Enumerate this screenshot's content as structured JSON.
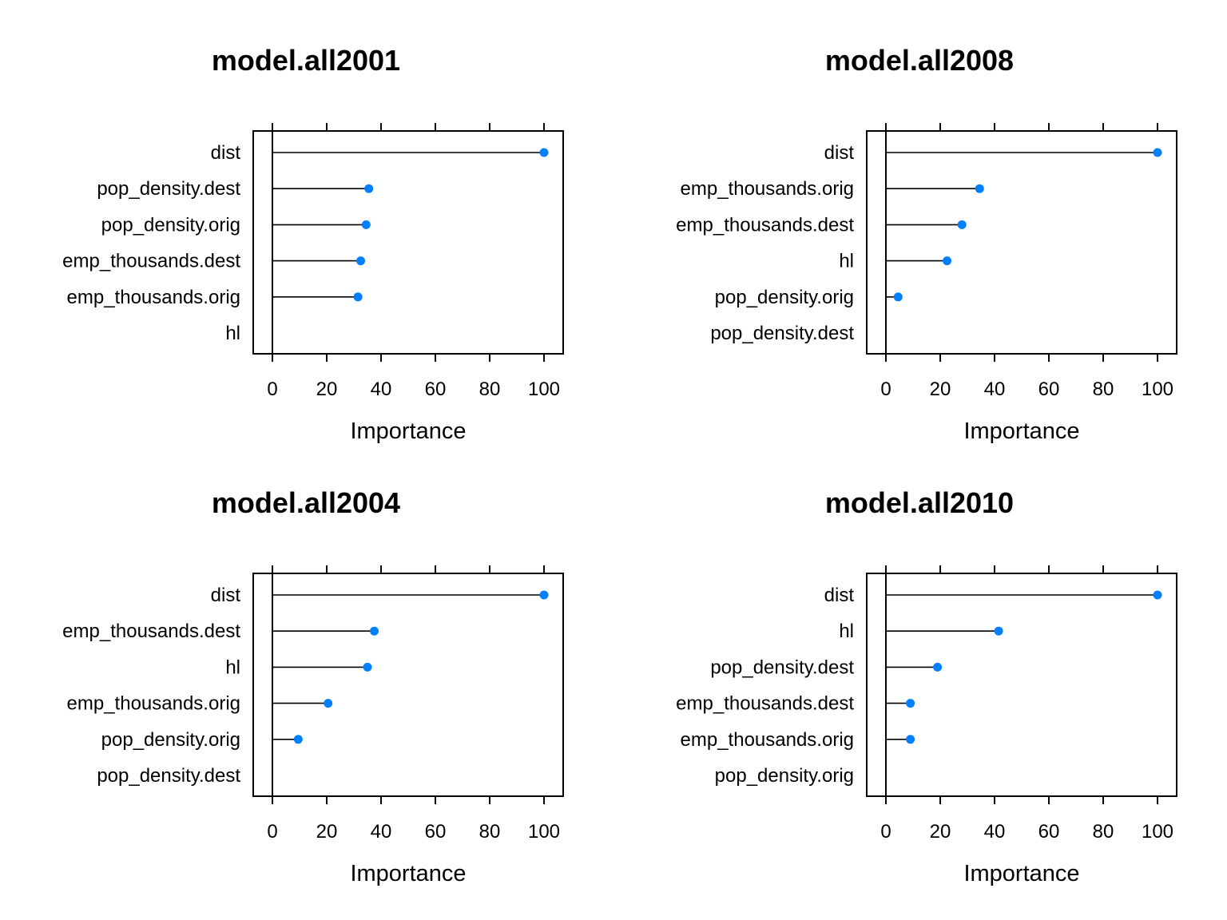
{
  "chart_data": [
    {
      "type": "dot",
      "title": "model.all2001",
      "xlabel": "Importance",
      "ylabel": "",
      "xlim": [
        0,
        100
      ],
      "xticks": [
        0,
        20,
        40,
        60,
        80,
        100
      ],
      "categories": [
        "dist",
        "pop_density.dest",
        "pop_density.orig",
        "emp_thousands.dest",
        "emp_thousands.orig",
        "hl"
      ],
      "values": [
        100,
        35.5,
        34.5,
        32.5,
        31.5,
        0
      ],
      "point_color": "#0080FF"
    },
    {
      "type": "dot",
      "title": "model.all2008",
      "xlabel": "Importance",
      "ylabel": "",
      "xlim": [
        0,
        100
      ],
      "xticks": [
        0,
        20,
        40,
        60,
        80,
        100
      ],
      "categories": [
        "dist",
        "emp_thousands.orig",
        "emp_thousands.dest",
        "hl",
        "pop_density.orig",
        "pop_density.dest"
      ],
      "values": [
        100,
        34.5,
        28,
        22.5,
        4.5,
        0
      ],
      "point_color": "#0080FF"
    },
    {
      "type": "dot",
      "title": "model.all2004",
      "xlabel": "Importance",
      "ylabel": "",
      "xlim": [
        0,
        100
      ],
      "xticks": [
        0,
        20,
        40,
        60,
        80,
        100
      ],
      "categories": [
        "dist",
        "emp_thousands.dest",
        "hl",
        "emp_thousands.orig",
        "pop_density.orig",
        "pop_density.dest"
      ],
      "values": [
        100,
        37.5,
        35,
        20.5,
        9.5,
        0
      ],
      "point_color": "#0080FF"
    },
    {
      "type": "dot",
      "title": "model.all2010",
      "xlabel": "Importance",
      "ylabel": "",
      "xlim": [
        0,
        100
      ],
      "xticks": [
        0,
        20,
        40,
        60,
        80,
        100
      ],
      "categories": [
        "dist",
        "hl",
        "pop_density.dest",
        "emp_thousands.dest",
        "emp_thousands.orig",
        "pop_density.orig"
      ],
      "values": [
        100,
        41.5,
        19,
        9,
        9,
        0
      ],
      "point_color": "#0080FF"
    }
  ]
}
